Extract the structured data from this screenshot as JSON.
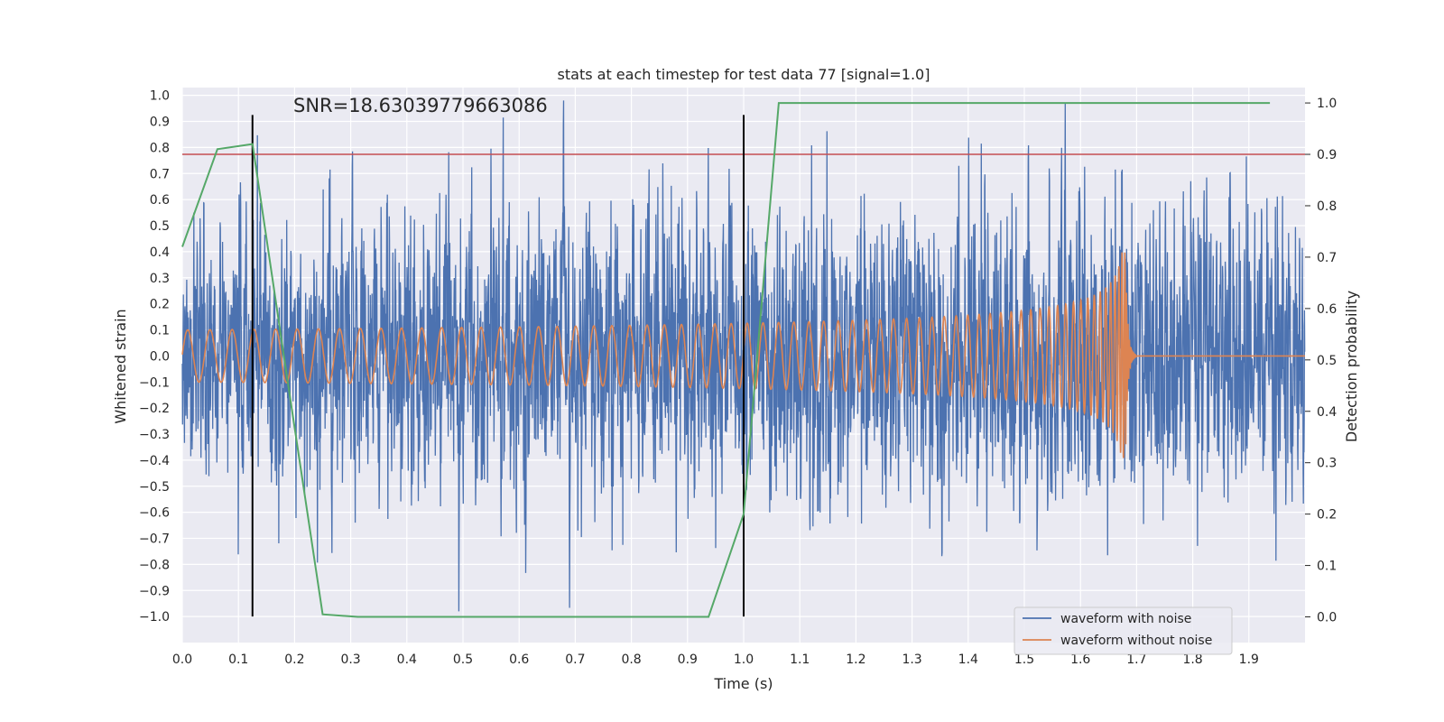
{
  "chart_data": {
    "type": "line",
    "title": "stats at each timestep for test data 77 [signal=1.0]",
    "xlabel": "Time (s)",
    "ylabel": "Whitened strain",
    "y2label": "Detection probability",
    "xlim": [
      0.0,
      2.0
    ],
    "ylim": [
      -1.1,
      1.03
    ],
    "y2lim": [
      -0.05,
      1.03
    ],
    "xticks": [
      "0.0",
      "0.1",
      "0.2",
      "0.3",
      "0.4",
      "0.5",
      "0.6",
      "0.7",
      "0.8",
      "0.9",
      "1.0",
      "1.1",
      "1.2",
      "1.3",
      "1.4",
      "1.5",
      "1.6",
      "1.7",
      "1.8",
      "1.9"
    ],
    "yticks": [
      "1.0",
      "0.9",
      "0.8",
      "0.7",
      "0.6",
      "0.5",
      "0.4",
      "0.3",
      "0.2",
      "0.1",
      "0.0",
      "-0.1",
      "-0.2",
      "-0.3",
      "-0.4",
      "-0.5",
      "-0.6",
      "-0.7",
      "-0.8",
      "-0.9",
      "-1.0"
    ],
    "y2ticks": [
      "1.0",
      "0.9",
      "0.8",
      "0.7",
      "0.6",
      "0.5",
      "0.4",
      "0.3",
      "0.2",
      "0.1",
      "0.0"
    ],
    "grid": true,
    "annotation": "SNR=18.63039779663086",
    "threshold": {
      "axis": "y2",
      "value": 0.9,
      "color": "#C44E52"
    },
    "vertical_markers": [
      {
        "x": 0.125,
        "y_range": [
          -1.0,
          0.925
        ],
        "color": "#000000"
      },
      {
        "x": 1.0,
        "y_range": [
          -1.0,
          0.925
        ],
        "color": "#000000"
      }
    ],
    "detection_probability": {
      "axis": "y2",
      "color": "#55A868",
      "x": [
        0.0,
        0.0625,
        0.125,
        0.1875,
        0.25,
        0.3125,
        0.375,
        0.4375,
        0.5,
        0.5625,
        0.625,
        0.6875,
        0.75,
        0.8125,
        0.875,
        0.9375,
        1.0,
        1.0625,
        1.125,
        1.1875,
        1.25,
        1.3125,
        1.375,
        1.4375,
        1.5,
        1.5625,
        1.625,
        1.6875,
        1.75,
        1.8125,
        1.875,
        1.9375
      ],
      "values": [
        0.72,
        0.91,
        0.92,
        0.46,
        0.005,
        0.0,
        0.0,
        0.0,
        0.0,
        0.0,
        0.0,
        0.0,
        0.0,
        0.0,
        0.0,
        0.0,
        0.2,
        1.0,
        1.0,
        1.0,
        1.0,
        1.0,
        1.0,
        1.0,
        1.0,
        1.0,
        1.0,
        1.0,
        1.0,
        1.0,
        1.0,
        1.0
      ]
    },
    "series": [
      {
        "name": "waveform with noise",
        "color": "#4C72B0",
        "sample_rate": 2048,
        "envelope_x": [
          0.0,
          0.2,
          0.4,
          0.6,
          0.8,
          1.0,
          1.2,
          1.4,
          1.6,
          1.8,
          2.0
        ],
        "envelope_std": [
          0.23,
          0.24,
          0.25,
          0.25,
          0.25,
          0.25,
          0.26,
          0.27,
          0.29,
          0.26,
          0.24
        ]
      },
      {
        "name": "waveform without noise",
        "color": "#DD8452",
        "chirp_t0": 0.0,
        "chirp_tc": 1.68,
        "amp_start": 0.1,
        "amp_peak": 0.4,
        "f_start": 25,
        "f_end": 380
      }
    ],
    "legend": {
      "position": "lower-right",
      "entries": [
        "waveform with noise",
        "waveform without noise"
      ]
    }
  }
}
